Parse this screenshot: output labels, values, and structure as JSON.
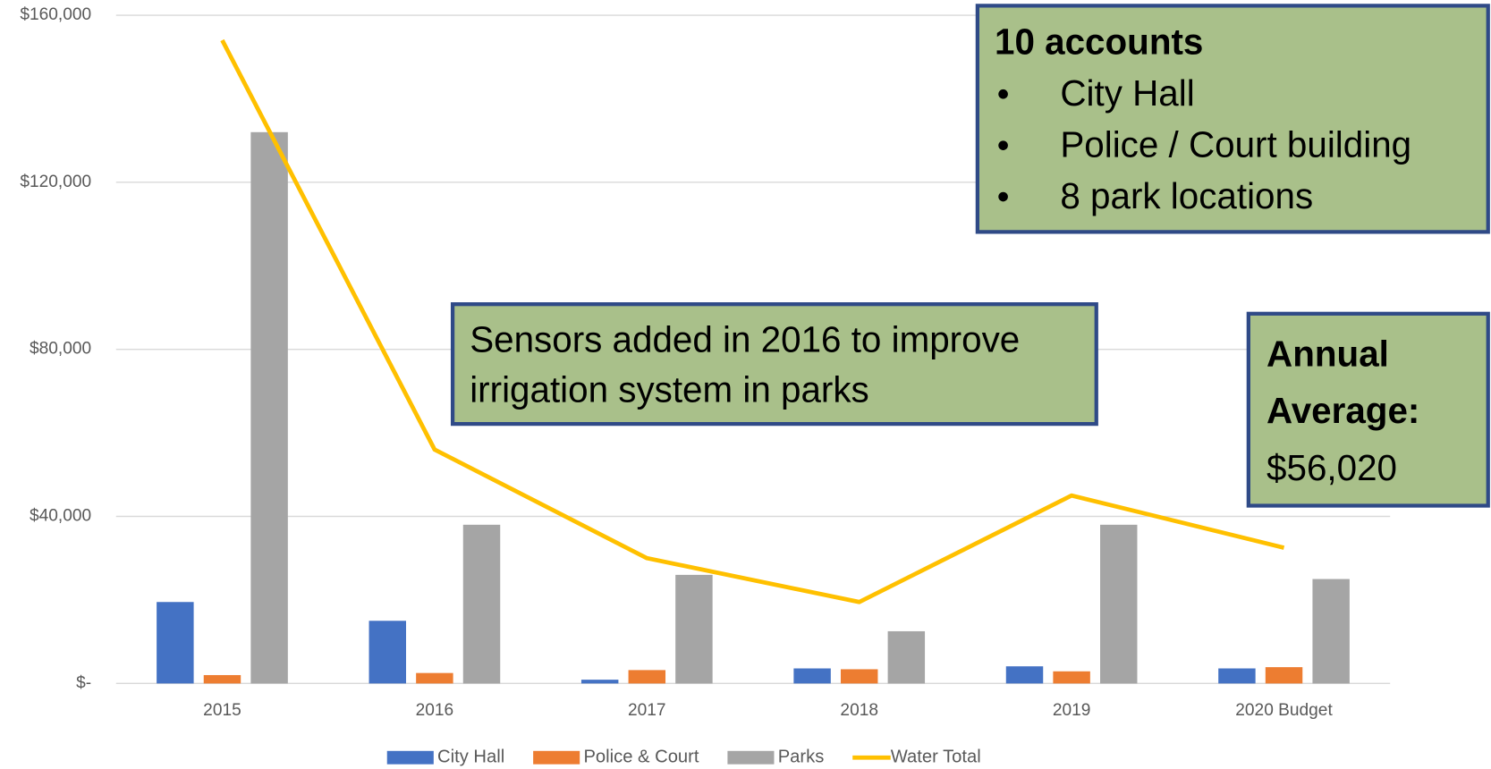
{
  "chart_data": {
    "type": "bar",
    "categories": [
      "2015",
      "2016",
      "2017",
      "2018",
      "2019",
      "2020 Budget"
    ],
    "series": [
      {
        "name": "City Hall",
        "type": "bar",
        "color": "#4472c4",
        "values": [
          19500,
          15000,
          900,
          3600,
          4100,
          3600
        ]
      },
      {
        "name": "Police & Court",
        "type": "bar",
        "color": "#ed7d31",
        "values": [
          2000,
          2500,
          3200,
          3400,
          2900,
          3900
        ]
      },
      {
        "name": "Parks",
        "type": "bar",
        "color": "#a5a5a5",
        "values": [
          132000,
          38000,
          26000,
          12500,
          38000,
          25000
        ]
      },
      {
        "name": "Water Total",
        "type": "line",
        "color": "#ffc000",
        "values": [
          154000,
          56000,
          30000,
          19500,
          45000,
          32500
        ]
      }
    ],
    "ylim": [
      0,
      160000
    ],
    "yticks": [
      {
        "value": 0,
        "label": "$-"
      },
      {
        "value": 40000,
        "label": "$40,000"
      },
      {
        "value": 80000,
        "label": "$80,000"
      },
      {
        "value": 120000,
        "label": "$120,000"
      },
      {
        "value": 160000,
        "label": "$160,000"
      }
    ],
    "grid": true,
    "legend": "bottom",
    "annotations": [
      {
        "title": "10 accounts",
        "items": [
          "City Hall",
          "Police / Court building",
          "8 park locations"
        ]
      },
      {
        "lines": [
          "Sensors added in 2016 to improve",
          "irrigation system in parks"
        ]
      },
      {
        "title_lines": [
          "Annual",
          "Average:"
        ],
        "text": "$56,020"
      }
    ]
  }
}
